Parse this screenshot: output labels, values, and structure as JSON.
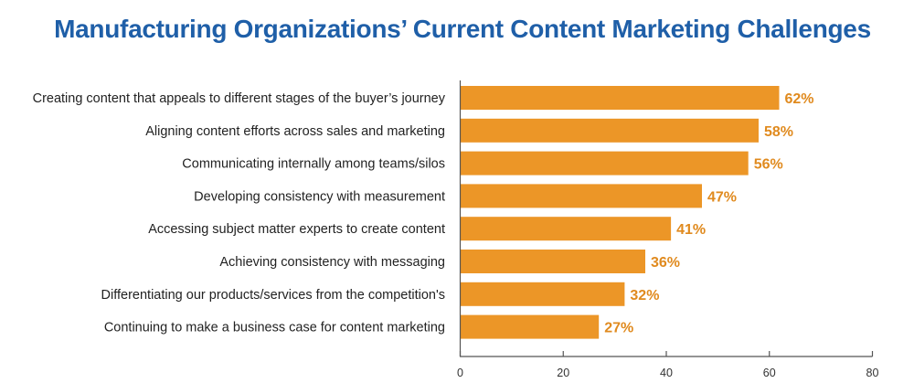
{
  "colors": {
    "title": "#1f5fa8",
    "bar": "#ec9627",
    "data_label": "#e08a1e",
    "axis": "#555555"
  },
  "chart_data": {
    "type": "bar",
    "orientation": "horizontal",
    "title": "Manufacturing Organizations’ Current Content Marketing Challenges",
    "xlabel": "",
    "ylabel": "",
    "xlim": [
      0,
      80
    ],
    "xticks": [
      0,
      20,
      40,
      60,
      80
    ],
    "grid": false,
    "categories": [
      "Creating content that appeals to different stages of the buyer’s journey",
      "Aligning content efforts across sales and marketing",
      "Communicating internally among teams/silos",
      "Developing consistency with measurement",
      "Accessing subject matter experts to create content",
      "Achieving consistency with messaging",
      "Differentiating our products/services from the competition's",
      "Continuing to make a business case for content marketing"
    ],
    "values": [
      62,
      58,
      56,
      47,
      41,
      36,
      32,
      27
    ],
    "value_labels": [
      "62%",
      "58%",
      "56%",
      "47%",
      "41%",
      "36%",
      "32%",
      "27%"
    ]
  }
}
